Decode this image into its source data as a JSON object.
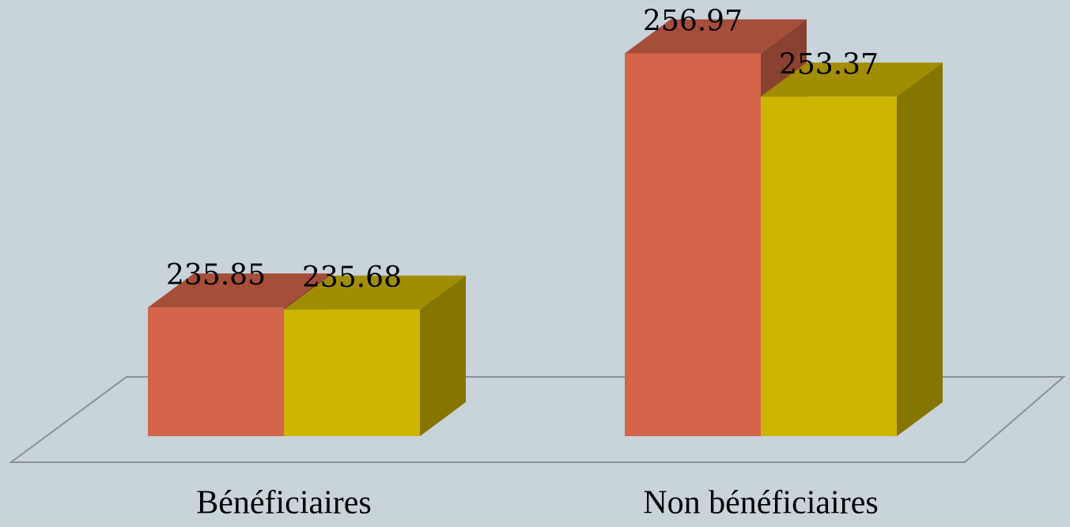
{
  "chart_data": {
    "type": "bar3d",
    "categories": [
      "Bénéficiaires",
      "Non bénéficiaires"
    ],
    "series": [
      {
        "color": "#d4644a",
        "values": [
          235.85,
          256.97
        ]
      },
      {
        "color": "#cdb600",
        "values": [
          235.68,
          253.37
        ]
      }
    ],
    "ylim": [
      225.16,
      257
    ]
  }
}
